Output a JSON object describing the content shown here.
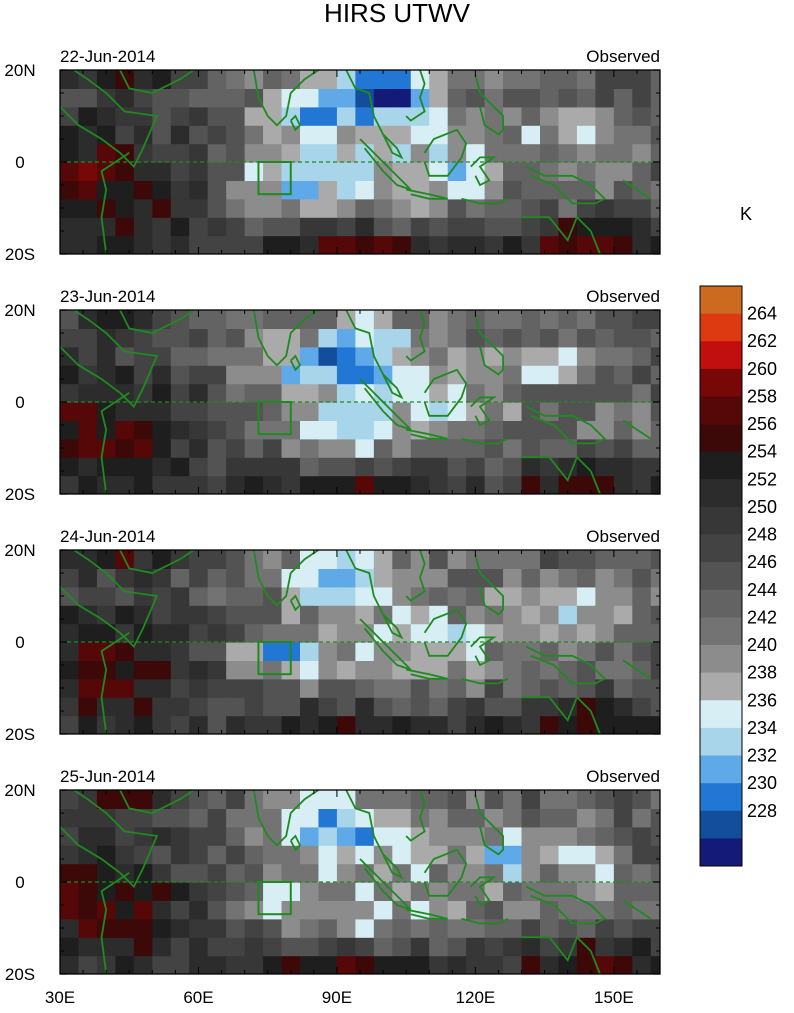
{
  "chart_data": {
    "type": "heatmap",
    "title": "HIRS UTWV",
    "units": "K",
    "x_tick_labels": [
      "30E",
      "60E",
      "90E",
      "120E",
      "150E"
    ],
    "x_tick_values": [
      30,
      60,
      90,
      120,
      150
    ],
    "xlim": [
      30,
      160
    ],
    "y_tick_labels": [
      "20N",
      "0",
      "20S"
    ],
    "y_tick_values": [
      20,
      0,
      -20
    ],
    "ylim": [
      -20,
      20
    ],
    "box_region": {
      "lon": [
        73,
        80
      ],
      "lat": [
        -7,
        0
      ]
    },
    "panels": [
      {
        "date": "22-Jun-2014",
        "label": "Observed"
      },
      {
        "date": "23-Jun-2014",
        "label": "Observed"
      },
      {
        "date": "24-Jun-2014",
        "label": "Observed"
      },
      {
        "date": "25-Jun-2014",
        "label": "Observed"
      }
    ],
    "colorbar": {
      "levels": [
        264,
        262,
        260,
        258,
        256,
        254,
        252,
        250,
        248,
        246,
        244,
        242,
        240,
        238,
        236,
        234,
        232,
        230,
        228
      ],
      "colors": [
        "#cc6a20",
        "#dd3a12",
        "#c10f0f",
        "#780808",
        "#560707",
        "#3c0808",
        "#1e1e1e",
        "#2c2c2c",
        "#373737",
        "#434343",
        "#535353",
        "#636363",
        "#737373",
        "#8c8c8c",
        "#aaaaaa",
        "#d6eef4",
        "#a8d5ea",
        "#5fa9e8",
        "#2377d4",
        "#124e9c",
        "#141a78"
      ]
    }
  }
}
